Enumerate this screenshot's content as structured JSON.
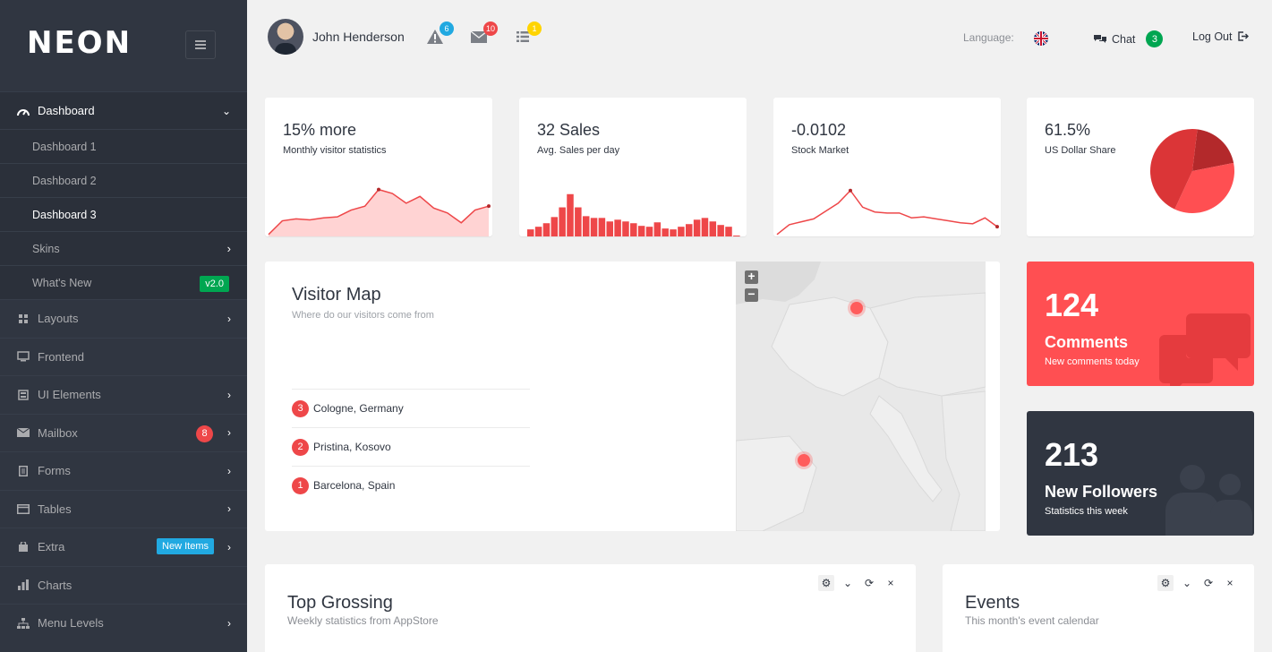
{
  "brand": {
    "logo": "NEON"
  },
  "sidebar": {
    "items": [
      {
        "label": "Dashboard",
        "icon": "gauge-icon",
        "active": true
      },
      {
        "label": "Layouts",
        "icon": "grid-icon"
      },
      {
        "label": "Frontend",
        "icon": "monitor-icon"
      },
      {
        "label": "UI Elements",
        "icon": "window-icon"
      },
      {
        "label": "Mailbox",
        "icon": "mail-icon",
        "badge": "8"
      },
      {
        "label": "Forms",
        "icon": "document-icon"
      },
      {
        "label": "Tables",
        "icon": "table-icon"
      },
      {
        "label": "Extra",
        "icon": "bag-icon",
        "badge": "New Items"
      },
      {
        "label": "Charts",
        "icon": "bar-chart-icon"
      },
      {
        "label": "Menu Levels",
        "icon": "sitemap-icon"
      }
    ],
    "submenu": [
      {
        "label": "Dashboard 1"
      },
      {
        "label": "Dashboard 2"
      },
      {
        "label": "Dashboard 3",
        "current": true
      },
      {
        "label": "Skins"
      },
      {
        "label": "What's New",
        "badge": "v2.0"
      }
    ]
  },
  "topbar": {
    "username": "John Henderson",
    "notifications": {
      "alerts": "6",
      "messages": "10",
      "tasks": "1"
    },
    "language_label": "Language:",
    "chat_label": "Chat",
    "chat_count": "3",
    "logout_label": "Log Out"
  },
  "tiles": [
    {
      "title": "15% more",
      "subtitle": "Monthly visitor statistics"
    },
    {
      "title": "32 Sales",
      "subtitle": "Avg. Sales per day"
    },
    {
      "title": "-0.0102",
      "subtitle": "Stock Market"
    },
    {
      "title": "61.5%",
      "subtitle": "US Dollar Share"
    }
  ],
  "chart_data": [
    {
      "type": "area",
      "values": [
        2,
        16,
        18,
        17,
        19,
        20,
        27,
        31,
        48,
        44,
        34,
        41,
        29,
        24,
        14,
        27,
        31
      ],
      "ylim": [
        0,
        55
      ],
      "colors": {
        "line": "#ee4749",
        "fill": "#ffd3d3"
      }
    },
    {
      "type": "bar",
      "values": [
        8,
        11,
        15,
        22,
        33,
        48,
        33,
        23,
        21,
        21,
        17,
        19,
        17,
        15,
        12,
        11,
        16,
        9,
        8,
        11,
        14,
        19,
        21,
        17,
        13,
        11,
        1
      ],
      "ylim": [
        0,
        50
      ],
      "colors": {
        "bar": "#ee4749"
      }
    },
    {
      "type": "line",
      "values": [
        2,
        12,
        15,
        18,
        26,
        34,
        47,
        30,
        25,
        24,
        24,
        19,
        20,
        18,
        16,
        14,
        13,
        19,
        10
      ],
      "ylim": [
        0,
        55
      ],
      "colors": {
        "line": "#ee4749"
      }
    },
    {
      "type": "pie",
      "values": [
        20,
        35,
        45
      ],
      "colors": [
        "#b3292b",
        "#ff4f52",
        "#db3537"
      ]
    }
  ],
  "visitor_map": {
    "title": "Visitor Map",
    "subtitle": "Where do our visitors come from",
    "locations": [
      {
        "rank": "3",
        "name": "Cologne, Germany"
      },
      {
        "rank": "2",
        "name": "Pristina, Kosovo"
      },
      {
        "rank": "1",
        "name": "Barcelona, Spain"
      }
    ],
    "zoom_in": "+",
    "zoom_out": "−"
  },
  "big_tiles": [
    {
      "number": "124",
      "label": "Comments",
      "sub": "New comments today",
      "color": "#ff4f52"
    },
    {
      "number": "213",
      "label": "New Followers",
      "sub": "Statistics this week",
      "color": "#303641"
    }
  ],
  "panels": [
    {
      "title": "Top Grossing",
      "subtitle": "Weekly statistics from AppStore"
    },
    {
      "title": "Events",
      "subtitle": "This month's event calendar"
    }
  ]
}
